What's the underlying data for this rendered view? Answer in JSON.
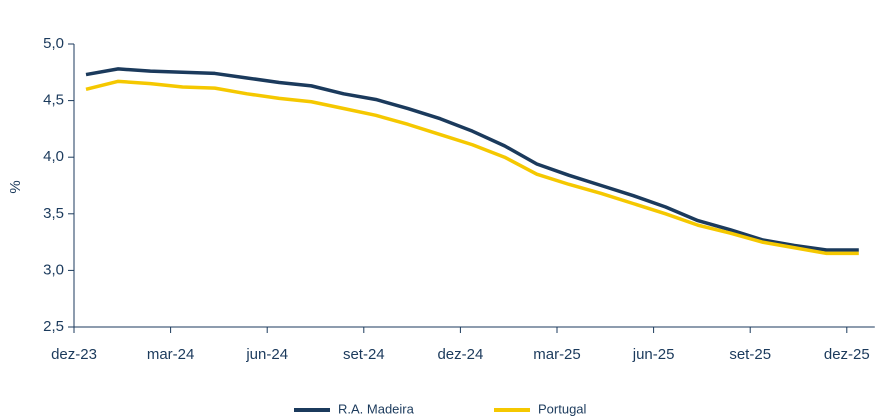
{
  "chart_data": {
    "type": "line",
    "ylabel": "%",
    "categories": [
      "dez-23",
      null,
      null,
      "mar-24",
      null,
      null,
      "jun-24",
      null,
      null,
      "set-24",
      null,
      null,
      "dez-24",
      null,
      null,
      "mar-25",
      null,
      null,
      "jun-25",
      null,
      null,
      "set-25",
      null,
      null,
      "dez-25"
    ],
    "series": [
      {
        "name": "R.A. Madeira",
        "color": "#1b3a5c",
        "values": [
          4.73,
          4.78,
          4.76,
          4.75,
          4.74,
          4.7,
          4.66,
          4.63,
          4.56,
          4.51,
          4.43,
          4.34,
          4.23,
          4.1,
          3.94,
          3.84,
          3.75,
          3.66,
          3.56,
          3.44,
          3.36,
          3.27,
          3.22,
          3.18,
          3.18
        ]
      },
      {
        "name": "Portugal",
        "color": "#f5c800",
        "values": [
          4.6,
          4.67,
          4.65,
          4.62,
          4.61,
          4.56,
          4.52,
          4.49,
          4.43,
          4.37,
          4.29,
          4.2,
          4.11,
          4.0,
          3.85,
          3.76,
          3.68,
          3.59,
          3.5,
          3.4,
          3.33,
          3.25,
          3.2,
          3.15,
          3.15
        ]
      }
    ],
    "ylim": [
      2.5,
      5.0
    ],
    "yticks": [
      {
        "value": 2.5,
        "label": "2,5"
      },
      {
        "value": 3.0,
        "label": "3,0"
      },
      {
        "value": 3.5,
        "label": "3,5"
      },
      {
        "value": 4.0,
        "label": "4,0"
      },
      {
        "value": 4.5,
        "label": "4,5"
      },
      {
        "value": 5.0,
        "label": "5,0"
      }
    ],
    "legend": "bottom"
  }
}
